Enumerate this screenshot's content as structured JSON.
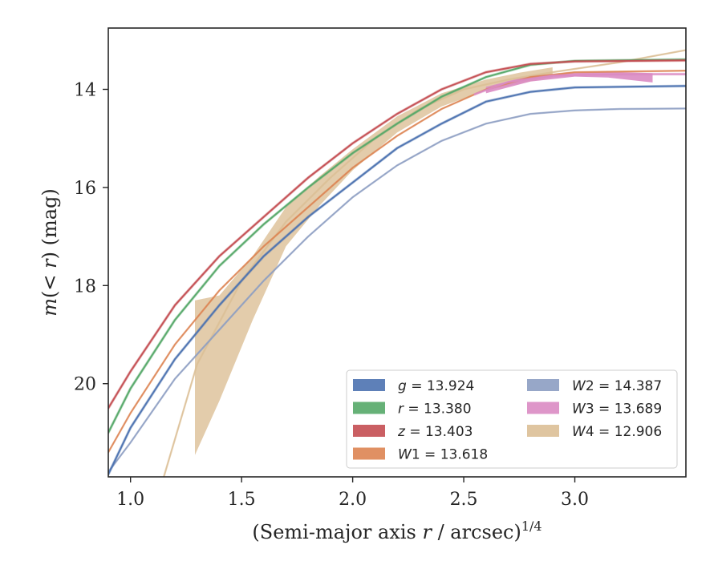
{
  "chart_data": {
    "type": "line",
    "title": "",
    "xlabel": "(Semi-major axis r / arcsec)^{1/4}",
    "xlabel_main": "(Semi-major axis ",
    "xlabel_var": "r",
    "xlabel_rest": " / arcsec)",
    "xlabel_sup": "1/4",
    "ylabel": "m(< r) (mag)",
    "ylabel_main": "m",
    "ylabel_open": "(< ",
    "ylabel_var": "r",
    "ylabel_rest": ") (mag)",
    "xlim": [
      0.9,
      3.5
    ],
    "ylim": [
      21.9,
      12.75
    ],
    "y_inverted": true,
    "grid": false,
    "legend_position": "lower-right",
    "x_ticks": [
      {
        "value": 1.0,
        "label": "1.0"
      },
      {
        "value": 1.5,
        "label": "1.5"
      },
      {
        "value": 2.0,
        "label": "2.0"
      },
      {
        "value": 2.5,
        "label": "2.5"
      },
      {
        "value": 3.0,
        "label": "3.0"
      }
    ],
    "y_ticks": [
      {
        "value": 14,
        "label": "14"
      },
      {
        "value": 16,
        "label": "16"
      },
      {
        "value": 18,
        "label": "18"
      },
      {
        "value": 20,
        "label": "20"
      }
    ],
    "series": [
      {
        "name": "g = 13.924",
        "band": "g",
        "value_text": "13.924",
        "color": "#4c72b0",
        "x": [
          0.9,
          1.0,
          1.2,
          1.4,
          1.6,
          1.8,
          2.0,
          2.2,
          2.4,
          2.6,
          2.8,
          3.0,
          3.5
        ],
        "y": [
          21.85,
          20.9,
          19.5,
          18.4,
          17.4,
          16.6,
          15.9,
          15.2,
          14.7,
          14.25,
          14.05,
          13.96,
          13.93
        ]
      },
      {
        "name": "r = 13.380",
        "band": "r",
        "value_text": "13.380",
        "color": "#55a868",
        "x": [
          0.9,
          1.0,
          1.2,
          1.4,
          1.6,
          1.8,
          2.0,
          2.2,
          2.4,
          2.6,
          2.8,
          3.0,
          3.5
        ],
        "y": [
          21.0,
          20.1,
          18.7,
          17.6,
          16.75,
          16.0,
          15.3,
          14.7,
          14.15,
          13.75,
          13.5,
          13.42,
          13.39
        ]
      },
      {
        "name": "z = 13.403",
        "band": "z",
        "value_text": "13.403",
        "color": "#c44e52",
        "x": [
          0.9,
          1.0,
          1.2,
          1.4,
          1.6,
          1.8,
          2.0,
          2.2,
          2.4,
          2.6,
          2.8,
          3.0,
          3.5
        ],
        "y": [
          20.5,
          19.75,
          18.4,
          17.4,
          16.6,
          15.8,
          15.1,
          14.5,
          14.0,
          13.65,
          13.48,
          13.43,
          13.41
        ]
      },
      {
        "name": "W1 = 13.618",
        "band": "W1",
        "value_text": "13.618",
        "color": "#dd8452",
        "x": [
          0.9,
          1.0,
          1.2,
          1.4,
          1.6,
          1.8,
          2.0,
          2.2,
          2.4,
          2.6,
          2.8,
          3.0,
          3.5
        ],
        "y": [
          21.4,
          20.6,
          19.2,
          18.1,
          17.2,
          16.4,
          15.6,
          14.95,
          14.4,
          14.0,
          13.75,
          13.65,
          13.62
        ]
      },
      {
        "name": "W2 = 14.387",
        "band": "W2",
        "value_text": "14.387",
        "color": "#8c9dc2",
        "x": [
          0.9,
          1.0,
          1.2,
          1.4,
          1.6,
          1.8,
          2.0,
          2.2,
          2.4,
          2.6,
          2.8,
          3.0,
          3.2,
          3.5
        ],
        "y": [
          21.8,
          21.2,
          19.9,
          18.9,
          17.9,
          17.0,
          16.2,
          15.55,
          15.05,
          14.7,
          14.5,
          14.43,
          14.4,
          14.39
        ]
      },
      {
        "name": "W3 = 13.689",
        "band": "W3",
        "value_text": "13.689",
        "color": "#da8bc3",
        "x": [
          2.55,
          2.7,
          2.9,
          3.1,
          3.3,
          3.5
        ],
        "y": [
          14.1,
          13.85,
          13.72,
          13.7,
          13.69,
          13.69
        ]
      },
      {
        "name": "W4 = 12.906",
        "band": "W4",
        "value_text": "12.906",
        "color": "#dcbf96",
        "x": [
          1.15,
          1.3,
          1.5,
          1.7,
          1.9,
          2.1,
          2.3,
          2.5,
          2.7,
          2.9,
          3.2,
          3.5
        ],
        "y": [
          21.9,
          19.6,
          17.9,
          16.7,
          15.8,
          15.0,
          14.4,
          14.0,
          13.8,
          13.65,
          13.45,
          13.2
        ]
      }
    ]
  }
}
